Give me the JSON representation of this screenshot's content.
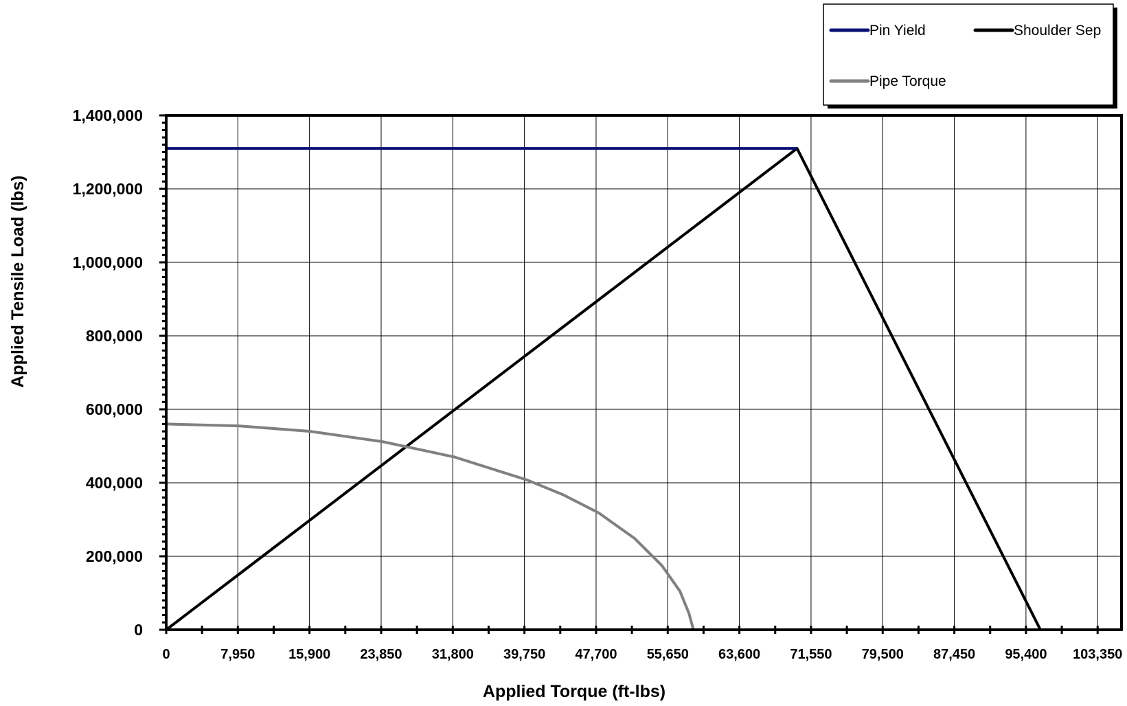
{
  "chart_data": {
    "type": "line",
    "xlabel": "Applied Torque (ft-lbs)",
    "ylabel": "Applied Tensile Load (lbs)",
    "xlim": [
      0,
      106000
    ],
    "ylim": [
      0,
      1400000
    ],
    "x_ticks": [
      0,
      7950,
      15900,
      23850,
      31800,
      39750,
      47700,
      55650,
      63600,
      71550,
      79500,
      87450,
      95400,
      103350
    ],
    "x_tick_labels": [
      "0",
      "7,950",
      "15,900",
      "23,850",
      "31,800",
      "39,750",
      "47,700",
      "55,650",
      "63,600",
      "71,550",
      "79,500",
      "87,450",
      "95,400",
      "103,350"
    ],
    "y_ticks": [
      0,
      200000,
      400000,
      600000,
      800000,
      1000000,
      1200000,
      1400000
    ],
    "y_tick_labels": [
      "0",
      "200,000",
      "400,000",
      "600,000",
      "800,000",
      "1,000,000",
      "1,200,000",
      "1,400,000"
    ],
    "grid": true,
    "legend_position": "top-right",
    "series": [
      {
        "name": "Pin Yield",
        "color": "#0a1172",
        "x": [
          0,
          70000
        ],
        "y": [
          1310000,
          1310000
        ]
      },
      {
        "name": "Shoulder Sep",
        "color": "#000000",
        "x": [
          0,
          70000,
          97000,
          106000
        ],
        "y": [
          0,
          1310000,
          0,
          0
        ]
      },
      {
        "name": "Pipe Torque",
        "color": "#808080",
        "x": [
          0,
          8000,
          16000,
          24000,
          32000,
          40000,
          44000,
          48000,
          52000,
          55000,
          57000,
          58000,
          58500,
          106000
        ],
        "y": [
          560000,
          555000,
          540000,
          512000,
          470000,
          408000,
          368000,
          318000,
          248000,
          175000,
          105000,
          45000,
          0,
          0
        ]
      }
    ]
  }
}
